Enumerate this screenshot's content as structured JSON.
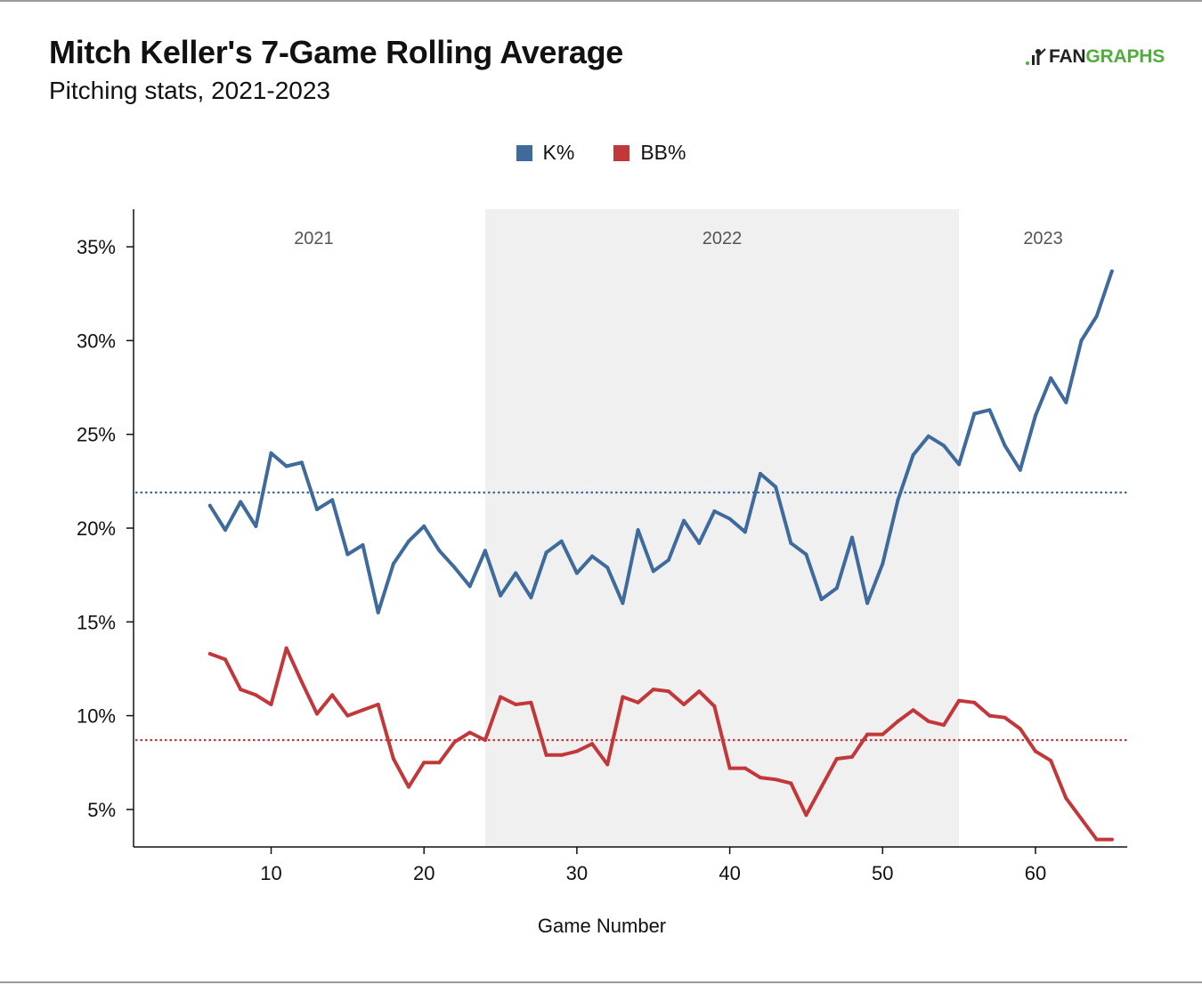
{
  "header": {
    "title": "Mitch Keller's 7-Game Rolling Average",
    "subtitle": "Pitching stats, 2021-2023",
    "logo_fan": "FAN",
    "logo_graphs": "GRAPHS"
  },
  "chart_data": {
    "type": "line",
    "title": "Mitch Keller's 7-Game Rolling Average",
    "subtitle": "Pitching stats, 2021-2023",
    "xlabel": "Game Number",
    "ylabel": "",
    "xlim": [
      1,
      66
    ],
    "ylim": [
      3,
      37
    ],
    "x_ticks": [
      10,
      20,
      30,
      40,
      50,
      60
    ],
    "y_ticks": [
      5,
      10,
      15,
      20,
      25,
      30,
      35
    ],
    "y_tick_labels": [
      "5%",
      "10%",
      "15%",
      "20%",
      "25%",
      "30%",
      "35%"
    ],
    "grid": false,
    "legend_position": "top-center",
    "seasons": [
      {
        "label": "2021",
        "start": 1,
        "end": 24,
        "shaded": false
      },
      {
        "label": "2022",
        "start": 24,
        "end": 55,
        "shaded": true
      },
      {
        "label": "2023",
        "start": 55,
        "end": 66,
        "shaded": false
      }
    ],
    "series": [
      {
        "name": "K%",
        "color": "#3f6a9c",
        "average": 21.9,
        "x": [
          6,
          7,
          8,
          9,
          10,
          11,
          12,
          13,
          14,
          15,
          16,
          17,
          18,
          19,
          20,
          21,
          22,
          23,
          24,
          25,
          26,
          27,
          28,
          29,
          30,
          31,
          32,
          33,
          34,
          35,
          36,
          37,
          38,
          39,
          40,
          41,
          42,
          43,
          44,
          45,
          46,
          47,
          48,
          49,
          50,
          51,
          52,
          53,
          54,
          55,
          56,
          57,
          58,
          59,
          60,
          61,
          62,
          63,
          64,
          65
        ],
        "values": [
          21.2,
          19.9,
          21.4,
          20.1,
          24.0,
          23.3,
          23.5,
          21.0,
          21.5,
          18.6,
          19.1,
          15.5,
          18.1,
          19.3,
          20.1,
          18.8,
          17.9,
          16.9,
          18.8,
          16.4,
          17.6,
          16.3,
          18.7,
          19.3,
          17.6,
          18.5,
          17.9,
          16.0,
          19.9,
          17.7,
          18.3,
          20.4,
          19.2,
          20.9,
          20.5,
          19.8,
          22.9,
          22.2,
          19.2,
          18.6,
          16.2,
          16.8,
          19.5,
          16.0,
          18.1,
          21.5,
          23.9,
          24.9,
          24.4,
          23.4,
          26.1,
          26.3,
          24.4,
          23.1,
          26.0,
          28.0,
          26.7,
          30.0,
          31.3,
          33.7
        ]
      },
      {
        "name": "BB%",
        "color": "#c2383a",
        "average": 8.7,
        "x": [
          6,
          7,
          8,
          9,
          10,
          11,
          12,
          13,
          14,
          15,
          16,
          17,
          18,
          19,
          20,
          21,
          22,
          23,
          24,
          25,
          26,
          27,
          28,
          29,
          30,
          31,
          32,
          33,
          34,
          35,
          36,
          37,
          38,
          39,
          40,
          41,
          42,
          43,
          44,
          45,
          46,
          47,
          48,
          49,
          50,
          51,
          52,
          53,
          54,
          55,
          56,
          57,
          58,
          59,
          60,
          61,
          62,
          63,
          64,
          65
        ],
        "values": [
          13.3,
          13.0,
          11.4,
          11.1,
          10.6,
          13.6,
          11.8,
          10.1,
          11.1,
          10.0,
          10.3,
          10.6,
          7.7,
          6.2,
          7.5,
          7.5,
          8.6,
          9.1,
          8.7,
          11.0,
          10.6,
          10.7,
          7.9,
          7.9,
          8.1,
          8.5,
          7.4,
          11.0,
          10.7,
          11.4,
          11.3,
          10.6,
          11.3,
          10.5,
          7.2,
          7.2,
          6.7,
          6.6,
          6.4,
          4.7,
          6.2,
          7.7,
          7.8,
          9.0,
          9.0,
          9.7,
          10.3,
          9.7,
          9.5,
          10.8,
          10.7,
          10.0,
          9.9,
          9.3,
          8.1,
          7.6,
          5.6,
          4.5,
          3.4,
          3.4
        ]
      }
    ]
  }
}
